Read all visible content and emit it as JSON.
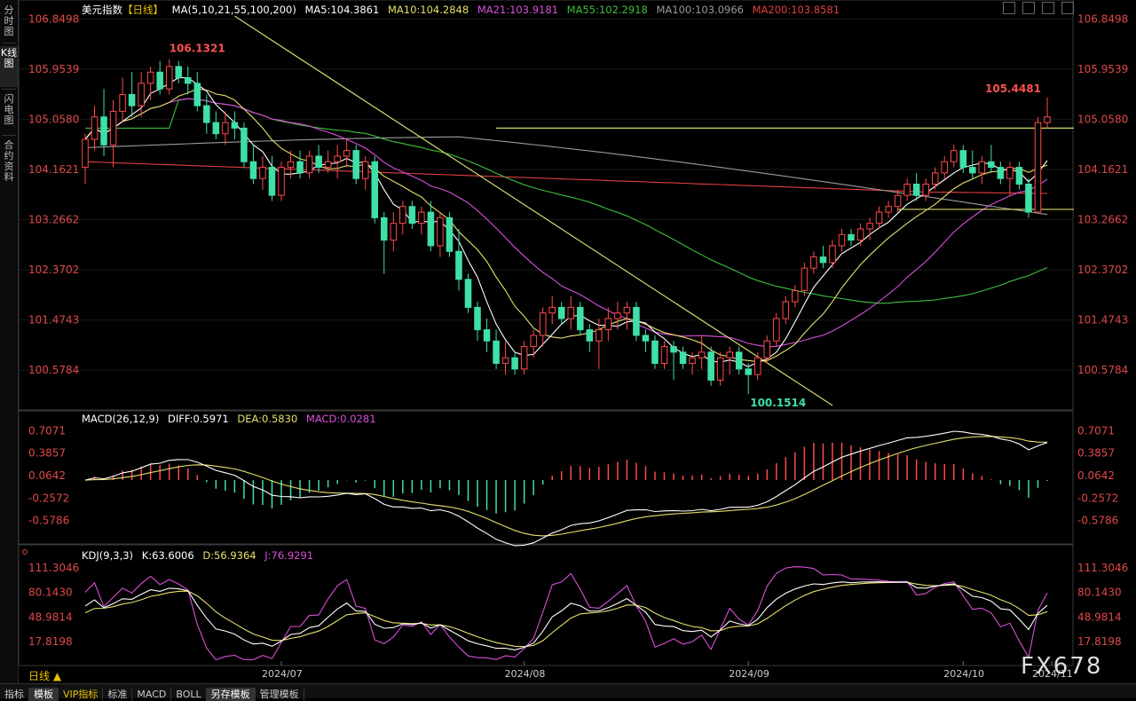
{
  "sidebar": {
    "tabs": [
      {
        "label": "分时图"
      },
      {
        "label": "K线图"
      },
      {
        "label": "闪电图"
      },
      {
        "label": "合约资料"
      }
    ]
  },
  "header": {
    "instrument": "美元指数",
    "period_tag": "【日线】",
    "ma_title": "MA(5,10,21,55,100,200)",
    "ma_items": [
      {
        "label": "MA5:104.3861",
        "color": "#ffffff"
      },
      {
        "label": "MA10:104.2848",
        "color": "#e6e06a"
      },
      {
        "label": "MA21:103.9181",
        "color": "#d94fd9"
      },
      {
        "label": "MA55:102.2918",
        "color": "#3fbf3f"
      },
      {
        "label": "MA100:103.0966",
        "color": "#9a9a9a"
      },
      {
        "label": "MA200:103.8581",
        "color": "#e04040"
      }
    ]
  },
  "macd_legend": {
    "title": "MACD(26,12,9)",
    "diff": "DIFF:0.5971",
    "dea": "DEA:0.5830",
    "macd": "MACD:0.0281"
  },
  "kdj_legend": {
    "title": "KDJ(9,3,3)",
    "k": "K:63.6006",
    "d": "D:56.9364",
    "j": "J:76.9291"
  },
  "period_label": "日线 ▲",
  "watermark": "FX678",
  "bottom_tabs": [
    "指标",
    "模板",
    "VIP指标",
    "标准",
    "MACD",
    "BOLL",
    "另存模板",
    "管理模板"
  ],
  "colors": {
    "up": "#ff4a4a",
    "down": "#3fe0a8",
    "trendline": "#d8d870",
    "macd_dea": "#e6e06a",
    "macd_diff": "#ffffff",
    "kdj_k": "#ffffff",
    "kdj_d": "#e6e06a",
    "kdj_j": "#d94fd9"
  },
  "chart_data": [
    {
      "type": "candlestick",
      "title": "美元指数【日线】",
      "yticks": [
        "106.8498",
        "105.9539",
        "105.0580",
        "104.1621",
        "103.2662",
        "102.3702",
        "101.4743",
        "100.5784"
      ],
      "ylim": [
        99.9,
        106.95
      ],
      "xticks": [
        "2024/07",
        "2024/08",
        "2024/09",
        "2024/10",
        "2024/11"
      ],
      "annotations": [
        {
          "label": "106.1321",
          "value": 106.1321
        },
        {
          "label": "105.4481",
          "value": 105.4481
        },
        {
          "label": "100.1514",
          "value": 100.1514
        }
      ],
      "candles": [
        {
          "o": 104.2,
          "h": 104.8,
          "l": 103.9,
          "c": 104.7
        },
        {
          "o": 104.7,
          "h": 105.3,
          "l": 104.5,
          "c": 105.1
        },
        {
          "o": 105.1,
          "h": 105.6,
          "l": 104.4,
          "c": 104.6
        },
        {
          "o": 104.6,
          "h": 105.4,
          "l": 104.2,
          "c": 105.2
        },
        {
          "o": 105.2,
          "h": 105.8,
          "l": 105.0,
          "c": 105.5
        },
        {
          "o": 105.5,
          "h": 105.9,
          "l": 105.1,
          "c": 105.3
        },
        {
          "o": 105.3,
          "h": 105.9,
          "l": 105.1,
          "c": 105.7
        },
        {
          "o": 105.7,
          "h": 106.0,
          "l": 105.4,
          "c": 105.9
        },
        {
          "o": 105.9,
          "h": 106.1,
          "l": 105.5,
          "c": 105.6
        },
        {
          "o": 105.6,
          "h": 106.13,
          "l": 105.5,
          "c": 106.0
        },
        {
          "o": 106.0,
          "h": 106.1,
          "l": 105.7,
          "c": 105.8
        },
        {
          "o": 105.8,
          "h": 106.0,
          "l": 105.5,
          "c": 105.7
        },
        {
          "o": 105.7,
          "h": 105.9,
          "l": 105.2,
          "c": 105.3
        },
        {
          "o": 105.3,
          "h": 105.5,
          "l": 104.8,
          "c": 105.0
        },
        {
          "o": 105.0,
          "h": 105.2,
          "l": 104.7,
          "c": 104.8
        },
        {
          "o": 104.8,
          "h": 105.2,
          "l": 104.6,
          "c": 105.0
        },
        {
          "o": 105.0,
          "h": 105.2,
          "l": 104.7,
          "c": 104.9
        },
        {
          "o": 104.9,
          "h": 105.0,
          "l": 104.2,
          "c": 104.3
        },
        {
          "o": 104.3,
          "h": 104.6,
          "l": 103.9,
          "c": 104.0
        },
        {
          "o": 104.0,
          "h": 104.4,
          "l": 103.8,
          "c": 104.2
        },
        {
          "o": 104.2,
          "h": 104.4,
          "l": 103.6,
          "c": 103.7
        },
        {
          "o": 103.7,
          "h": 104.3,
          "l": 103.6,
          "c": 104.2
        },
        {
          "o": 104.2,
          "h": 104.5,
          "l": 104.0,
          "c": 104.3
        },
        {
          "o": 104.3,
          "h": 104.5,
          "l": 104.0,
          "c": 104.1
        },
        {
          "o": 104.1,
          "h": 104.5,
          "l": 104.0,
          "c": 104.4
        },
        {
          "o": 104.4,
          "h": 104.6,
          "l": 104.1,
          "c": 104.2
        },
        {
          "o": 104.2,
          "h": 104.5,
          "l": 104.1,
          "c": 104.3
        },
        {
          "o": 104.3,
          "h": 104.6,
          "l": 104.0,
          "c": 104.4
        },
        {
          "o": 104.4,
          "h": 104.7,
          "l": 104.2,
          "c": 104.5
        },
        {
          "o": 104.5,
          "h": 104.6,
          "l": 103.9,
          "c": 104.0
        },
        {
          "o": 104.0,
          "h": 104.4,
          "l": 103.8,
          "c": 104.3
        },
        {
          "o": 104.3,
          "h": 104.4,
          "l": 103.2,
          "c": 103.3
        },
        {
          "o": 103.3,
          "h": 103.4,
          "l": 102.3,
          "c": 102.9
        },
        {
          "o": 102.9,
          "h": 103.4,
          "l": 102.7,
          "c": 103.2
        },
        {
          "o": 103.2,
          "h": 103.6,
          "l": 103.0,
          "c": 103.5
        },
        {
          "o": 103.5,
          "h": 103.6,
          "l": 103.1,
          "c": 103.2
        },
        {
          "o": 103.2,
          "h": 103.5,
          "l": 103.0,
          "c": 103.4
        },
        {
          "o": 103.4,
          "h": 103.6,
          "l": 102.7,
          "c": 102.8
        },
        {
          "o": 102.8,
          "h": 103.4,
          "l": 102.6,
          "c": 103.3
        },
        {
          "o": 103.3,
          "h": 103.4,
          "l": 102.6,
          "c": 102.7
        },
        {
          "o": 102.7,
          "h": 103.1,
          "l": 102.0,
          "c": 102.2
        },
        {
          "o": 102.2,
          "h": 102.3,
          "l": 101.6,
          "c": 101.7
        },
        {
          "o": 101.7,
          "h": 101.8,
          "l": 101.1,
          "c": 101.3
        },
        {
          "o": 101.3,
          "h": 101.5,
          "l": 100.9,
          "c": 101.1
        },
        {
          "o": 101.1,
          "h": 101.3,
          "l": 100.6,
          "c": 100.7
        },
        {
          "o": 100.7,
          "h": 101.1,
          "l": 100.5,
          "c": 100.8
        },
        {
          "o": 100.8,
          "h": 100.9,
          "l": 100.5,
          "c": 100.6
        },
        {
          "o": 100.6,
          "h": 101.1,
          "l": 100.5,
          "c": 101.0
        },
        {
          "o": 101.0,
          "h": 101.3,
          "l": 100.8,
          "c": 101.2
        },
        {
          "o": 101.2,
          "h": 101.7,
          "l": 101.0,
          "c": 101.6
        },
        {
          "o": 101.6,
          "h": 101.9,
          "l": 101.4,
          "c": 101.7
        },
        {
          "o": 101.7,
          "h": 101.8,
          "l": 101.4,
          "c": 101.5
        },
        {
          "o": 101.5,
          "h": 101.9,
          "l": 101.3,
          "c": 101.7
        },
        {
          "o": 101.7,
          "h": 101.8,
          "l": 101.2,
          "c": 101.3
        },
        {
          "o": 101.3,
          "h": 101.4,
          "l": 100.9,
          "c": 101.1
        },
        {
          "o": 101.1,
          "h": 101.5,
          "l": 100.6,
          "c": 101.3
        },
        {
          "o": 101.3,
          "h": 101.7,
          "l": 101.1,
          "c": 101.5
        },
        {
          "o": 101.5,
          "h": 101.8,
          "l": 101.3,
          "c": 101.6
        },
        {
          "o": 101.6,
          "h": 101.8,
          "l": 101.3,
          "c": 101.7
        },
        {
          "o": 101.7,
          "h": 101.8,
          "l": 101.1,
          "c": 101.2
        },
        {
          "o": 101.2,
          "h": 101.3,
          "l": 100.9,
          "c": 101.1
        },
        {
          "o": 101.1,
          "h": 101.2,
          "l": 100.6,
          "c": 100.7
        },
        {
          "o": 100.7,
          "h": 101.1,
          "l": 100.6,
          "c": 101.0
        },
        {
          "o": 101.0,
          "h": 101.1,
          "l": 100.4,
          "c": 100.9
        },
        {
          "o": 100.9,
          "h": 101.0,
          "l": 100.6,
          "c": 100.7
        },
        {
          "o": 100.7,
          "h": 100.9,
          "l": 100.5,
          "c": 100.8
        },
        {
          "o": 100.8,
          "h": 101.2,
          "l": 100.6,
          "c": 100.9
        },
        {
          "o": 100.9,
          "h": 101.0,
          "l": 100.3,
          "c": 100.4
        },
        {
          "o": 100.4,
          "h": 100.9,
          "l": 100.3,
          "c": 100.8
        },
        {
          "o": 100.8,
          "h": 101.0,
          "l": 100.5,
          "c": 100.9
        },
        {
          "o": 100.9,
          "h": 101.0,
          "l": 100.5,
          "c": 100.6
        },
        {
          "o": 100.6,
          "h": 100.7,
          "l": 100.15,
          "c": 100.5
        },
        {
          "o": 100.5,
          "h": 100.9,
          "l": 100.4,
          "c": 100.8
        },
        {
          "o": 100.8,
          "h": 101.2,
          "l": 100.7,
          "c": 101.1
        },
        {
          "o": 101.1,
          "h": 101.6,
          "l": 101.0,
          "c": 101.5
        },
        {
          "o": 101.5,
          "h": 101.9,
          "l": 101.4,
          "c": 101.8
        },
        {
          "o": 101.8,
          "h": 102.1,
          "l": 101.7,
          "c": 102.0
        },
        {
          "o": 102.0,
          "h": 102.5,
          "l": 101.9,
          "c": 102.4
        },
        {
          "o": 102.4,
          "h": 102.7,
          "l": 102.3,
          "c": 102.6
        },
        {
          "o": 102.6,
          "h": 102.8,
          "l": 102.4,
          "c": 102.5
        },
        {
          "o": 102.5,
          "h": 102.9,
          "l": 102.4,
          "c": 102.8
        },
        {
          "o": 102.8,
          "h": 103.1,
          "l": 102.7,
          "c": 103.0
        },
        {
          "o": 103.0,
          "h": 103.1,
          "l": 102.8,
          "c": 102.9
        },
        {
          "o": 102.9,
          "h": 103.2,
          "l": 102.8,
          "c": 103.1
        },
        {
          "o": 103.1,
          "h": 103.3,
          "l": 102.9,
          "c": 103.2
        },
        {
          "o": 103.2,
          "h": 103.5,
          "l": 103.1,
          "c": 103.4
        },
        {
          "o": 103.4,
          "h": 103.6,
          "l": 103.3,
          "c": 103.5
        },
        {
          "o": 103.5,
          "h": 103.8,
          "l": 103.4,
          "c": 103.7
        },
        {
          "o": 103.7,
          "h": 104.0,
          "l": 103.6,
          "c": 103.9
        },
        {
          "o": 103.9,
          "h": 104.1,
          "l": 103.6,
          "c": 103.7
        },
        {
          "o": 103.7,
          "h": 104.0,
          "l": 103.6,
          "c": 103.9
        },
        {
          "o": 103.9,
          "h": 104.2,
          "l": 103.8,
          "c": 104.1
        },
        {
          "o": 104.1,
          "h": 104.4,
          "l": 104.0,
          "c": 104.3
        },
        {
          "o": 104.3,
          "h": 104.6,
          "l": 104.2,
          "c": 104.5
        },
        {
          "o": 104.5,
          "h": 104.6,
          "l": 104.1,
          "c": 104.2
        },
        {
          "o": 104.2,
          "h": 104.5,
          "l": 104.0,
          "c": 104.1
        },
        {
          "o": 104.1,
          "h": 104.4,
          "l": 103.9,
          "c": 104.3
        },
        {
          "o": 104.3,
          "h": 104.6,
          "l": 104.1,
          "c": 104.2
        },
        {
          "o": 104.2,
          "h": 104.3,
          "l": 103.9,
          "c": 104.0
        },
        {
          "o": 104.0,
          "h": 104.3,
          "l": 103.7,
          "c": 104.2
        },
        {
          "o": 104.2,
          "h": 104.3,
          "l": 103.8,
          "c": 103.9
        },
        {
          "o": 103.9,
          "h": 104.0,
          "l": 103.3,
          "c": 103.4
        },
        {
          "o": 103.4,
          "h": 105.1,
          "l": 103.4,
          "c": 105.0
        },
        {
          "o": 105.0,
          "h": 105.45,
          "l": 104.9,
          "c": 105.1
        }
      ],
      "hlines": [
        104.9,
        103.45
      ]
    },
    {
      "type": "bar",
      "title": "MACD(26,12,9)",
      "yticks": [
        "0.7071",
        "0.3857",
        "0.0642",
        "-0.2572",
        "-0.5786"
      ],
      "ylim": [
        -0.9,
        0.8
      ]
    },
    {
      "type": "line",
      "title": "KDJ(9,3,3)",
      "yticks": [
        "111.3046",
        "80.1430",
        "48.9814",
        "17.8198"
      ],
      "ylim": [
        -10,
        120
      ]
    }
  ]
}
